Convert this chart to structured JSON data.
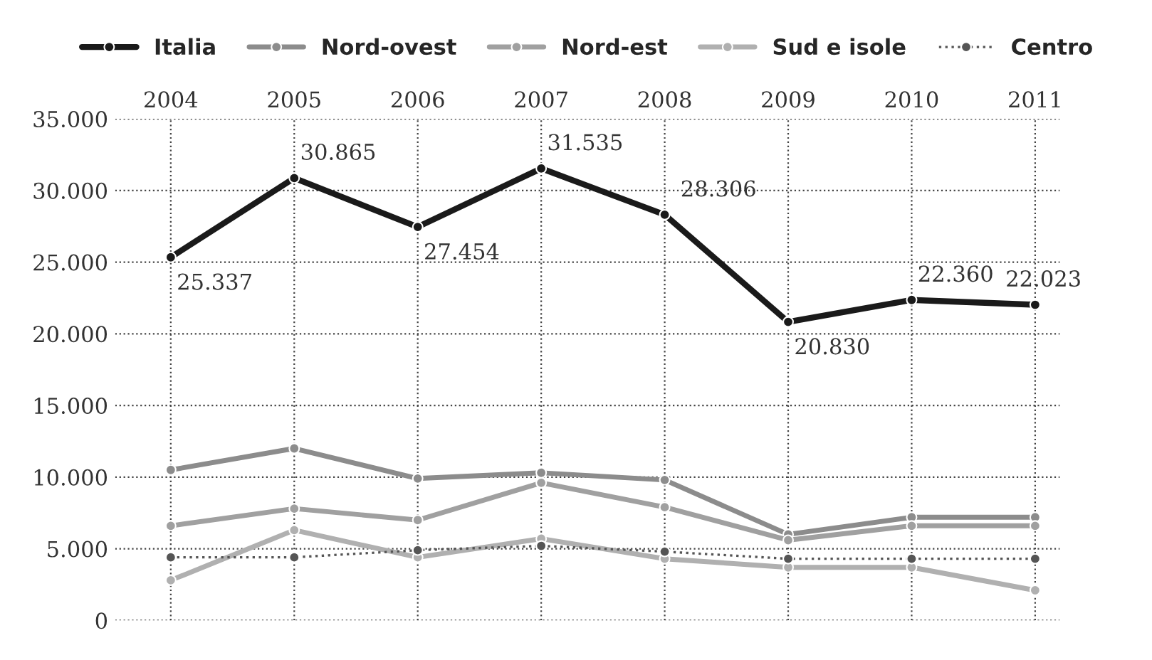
{
  "chart_data": {
    "type": "line",
    "categories": [
      "2004",
      "2005",
      "2006",
      "2007",
      "2008",
      "2009",
      "2010",
      "2011"
    ],
    "series": [
      {
        "name": "Italia",
        "color": "#1a1a1a",
        "values": [
          25337,
          30865,
          27454,
          31535,
          28306,
          20830,
          22360,
          22023
        ],
        "value_labels": [
          "25.337",
          "30.865",
          "27.454",
          "31.535",
          "28.306",
          "20.830",
          "22.360",
          "22.023"
        ]
      },
      {
        "name": "Nord-ovest",
        "color": "#8c8c8c",
        "values": [
          10500,
          12000,
          9900,
          10300,
          9800,
          6000,
          7200,
          7200
        ]
      },
      {
        "name": "Nord-est",
        "color": "#a0a0a0",
        "values": [
          6600,
          7800,
          7000,
          9600,
          7900,
          5600,
          6600,
          6600
        ]
      },
      {
        "name": "Sud e isole",
        "color": "#b0b0b0",
        "values": [
          2800,
          6300,
          4400,
          5700,
          4300,
          3700,
          3700,
          2100
        ]
      },
      {
        "name": "Centro",
        "color": "#555555",
        "line_style": "dotted",
        "values": [
          4400,
          4400,
          4900,
          5200,
          4800,
          4300,
          4300,
          4300
        ]
      }
    ],
    "ylim": [
      0,
      35000
    ],
    "yticks": [
      0,
      {
        "value": 5000,
        "label": "5.000"
      },
      {
        "value": 10000,
        "label": "10.000"
      },
      {
        "value": 15000,
        "label": "15.000"
      },
      {
        "value": 20000,
        "label": "20.000"
      },
      {
        "value": 25000,
        "label": "25.000"
      },
      {
        "value": 30000,
        "label": "30.000"
      },
      {
        "value": 35000,
        "label": "35.000"
      }
    ],
    "grid": true,
    "legend": "top",
    "marker": "circle"
  }
}
